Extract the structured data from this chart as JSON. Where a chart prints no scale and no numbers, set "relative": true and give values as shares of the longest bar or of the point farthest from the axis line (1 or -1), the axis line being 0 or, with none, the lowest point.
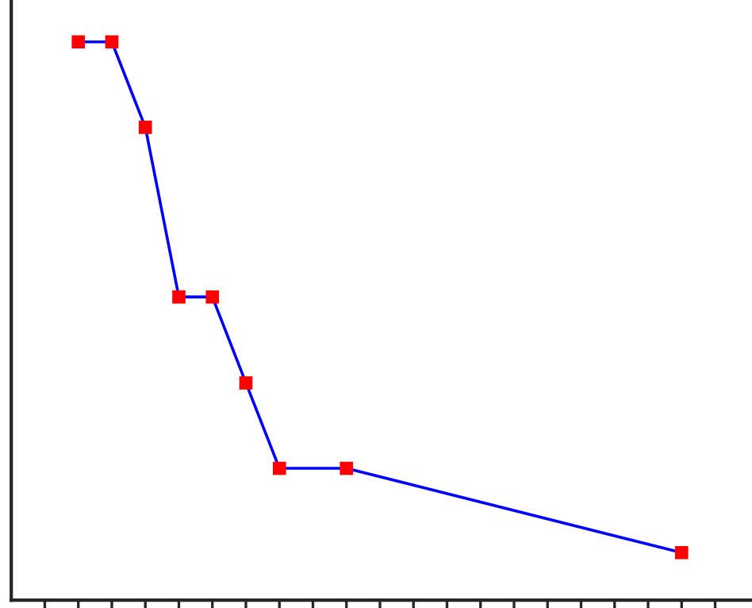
{
  "chart_data": {
    "type": "line",
    "relative": true,
    "categories": [
      null,
      null,
      null,
      null,
      null,
      null,
      null,
      null,
      null,
      null,
      null,
      null,
      null,
      null,
      null,
      null,
      null,
      null,
      null,
      null,
      null
    ],
    "series": [
      {
        "color": "#0000ff",
        "colors": [
          null,
          "#ff0000",
          "#ff0000",
          "#ff0000",
          "#ff0000",
          "#ff0000",
          "#ff0000",
          "#ff0000",
          null,
          "#ff0000",
          null,
          null,
          null,
          null,
          null,
          null,
          null,
          null,
          null,
          "#ff0000",
          null
        ],
        "values": [
          null,
          1,
          1,
          0.847,
          0.543,
          0.543,
          0.389,
          0.236,
          null,
          0.236,
          null,
          null,
          null,
          null,
          null,
          null,
          null,
          null,
          null,
          0.085,
          null
        ]
      }
    ],
    "marker": "square",
    "line_style": "solid",
    "grid": false,
    "legend": false
  }
}
